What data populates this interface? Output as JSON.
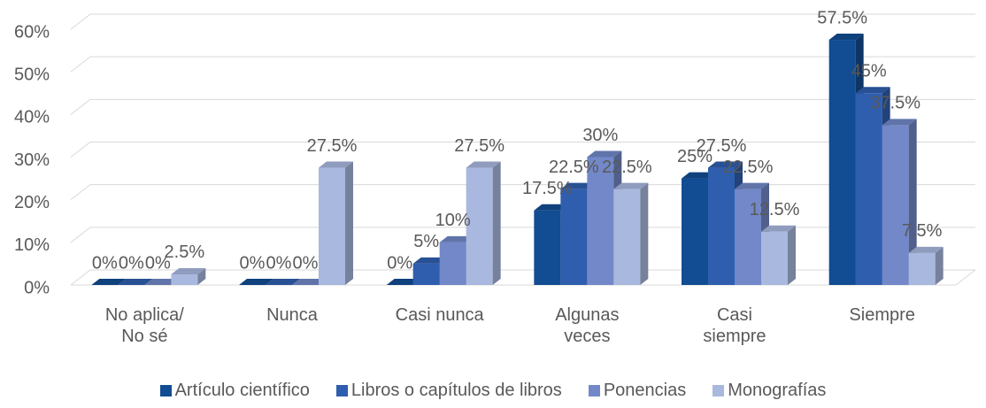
{
  "chart_data": {
    "type": "bar3d",
    "categories": [
      "No aplica/\nNo sé",
      "Nunca",
      "Casi nunca",
      "Algunas\nveces",
      "Casi\nsiempre",
      "Siempre"
    ],
    "series": [
      {
        "name": "Artículo científico",
        "color": "#124c92",
        "values": [
          0,
          0,
          0,
          17.5,
          25,
          57.5
        ],
        "value_labels": [
          "0%",
          "0%",
          "0%",
          "17.5%",
          "25%",
          "57.5%"
        ]
      },
      {
        "name": "Libros o capítulos de libros",
        "color": "#2f5eae",
        "values": [
          0,
          0,
          5,
          22.5,
          27.5,
          45
        ],
        "value_labels": [
          "0%",
          "0%",
          "5%",
          "22.5%",
          "27.5%",
          "45%"
        ]
      },
      {
        "name": "Ponencias",
        "color": "#7288c8",
        "values": [
          0,
          0,
          10,
          30,
          22.5,
          37.5
        ],
        "value_labels": [
          "0%",
          "0%",
          "10%",
          "30%",
          "22.5%",
          "37.5%"
        ]
      },
      {
        "name": "Monografías",
        "color": "#a9b8df",
        "values": [
          2.5,
          27.5,
          27.5,
          22.5,
          12.5,
          7.5
        ],
        "value_labels": [
          "2.5%",
          "27.5%",
          "27.5%",
          "22.5%",
          "12.5%",
          "7.5%"
        ]
      }
    ],
    "ylim": [
      0,
      60
    ],
    "yticks": [
      {
        "value": 0,
        "label": "0%"
      },
      {
        "value": 10,
        "label": "10%"
      },
      {
        "value": 20,
        "label": "20%"
      },
      {
        "value": 30,
        "label": "30%"
      },
      {
        "value": 40,
        "label": "40%"
      },
      {
        "value": 50,
        "label": "50%"
      },
      {
        "value": 60,
        "label": "60%"
      }
    ],
    "grid": true,
    "legend": "bottom"
  }
}
